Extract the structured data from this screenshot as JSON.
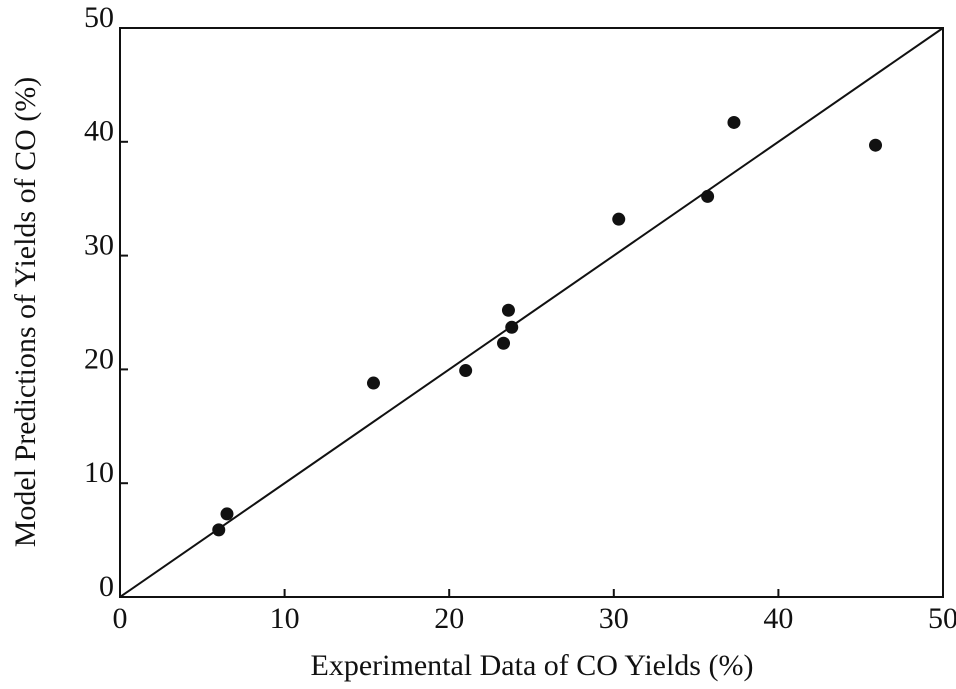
{
  "chart_data": {
    "type": "scatter",
    "x_label": "Experimental Data of CO Yields (%)",
    "y_label": "Model Predictions of Yields of CO (%)",
    "x": [
      6.0,
      6.5,
      15.4,
      21.0,
      23.3,
      23.6,
      23.8,
      30.3,
      35.7,
      37.3,
      45.9
    ],
    "values": [
      5.9,
      7.3,
      18.8,
      19.9,
      22.3,
      25.2,
      23.7,
      33.2,
      35.2,
      41.7,
      39.7
    ],
    "color": "#111111",
    "reference_line": {
      "x": [
        0,
        50
      ],
      "values": [
        0,
        50
      ],
      "color": "#111111"
    },
    "xlim": [
      0,
      50
    ],
    "ylim": [
      0,
      50
    ],
    "xticks": [
      0,
      10,
      20,
      30,
      40,
      50
    ],
    "yticks": [
      0,
      10,
      20,
      30,
      40,
      50
    ],
    "grid": false
  }
}
